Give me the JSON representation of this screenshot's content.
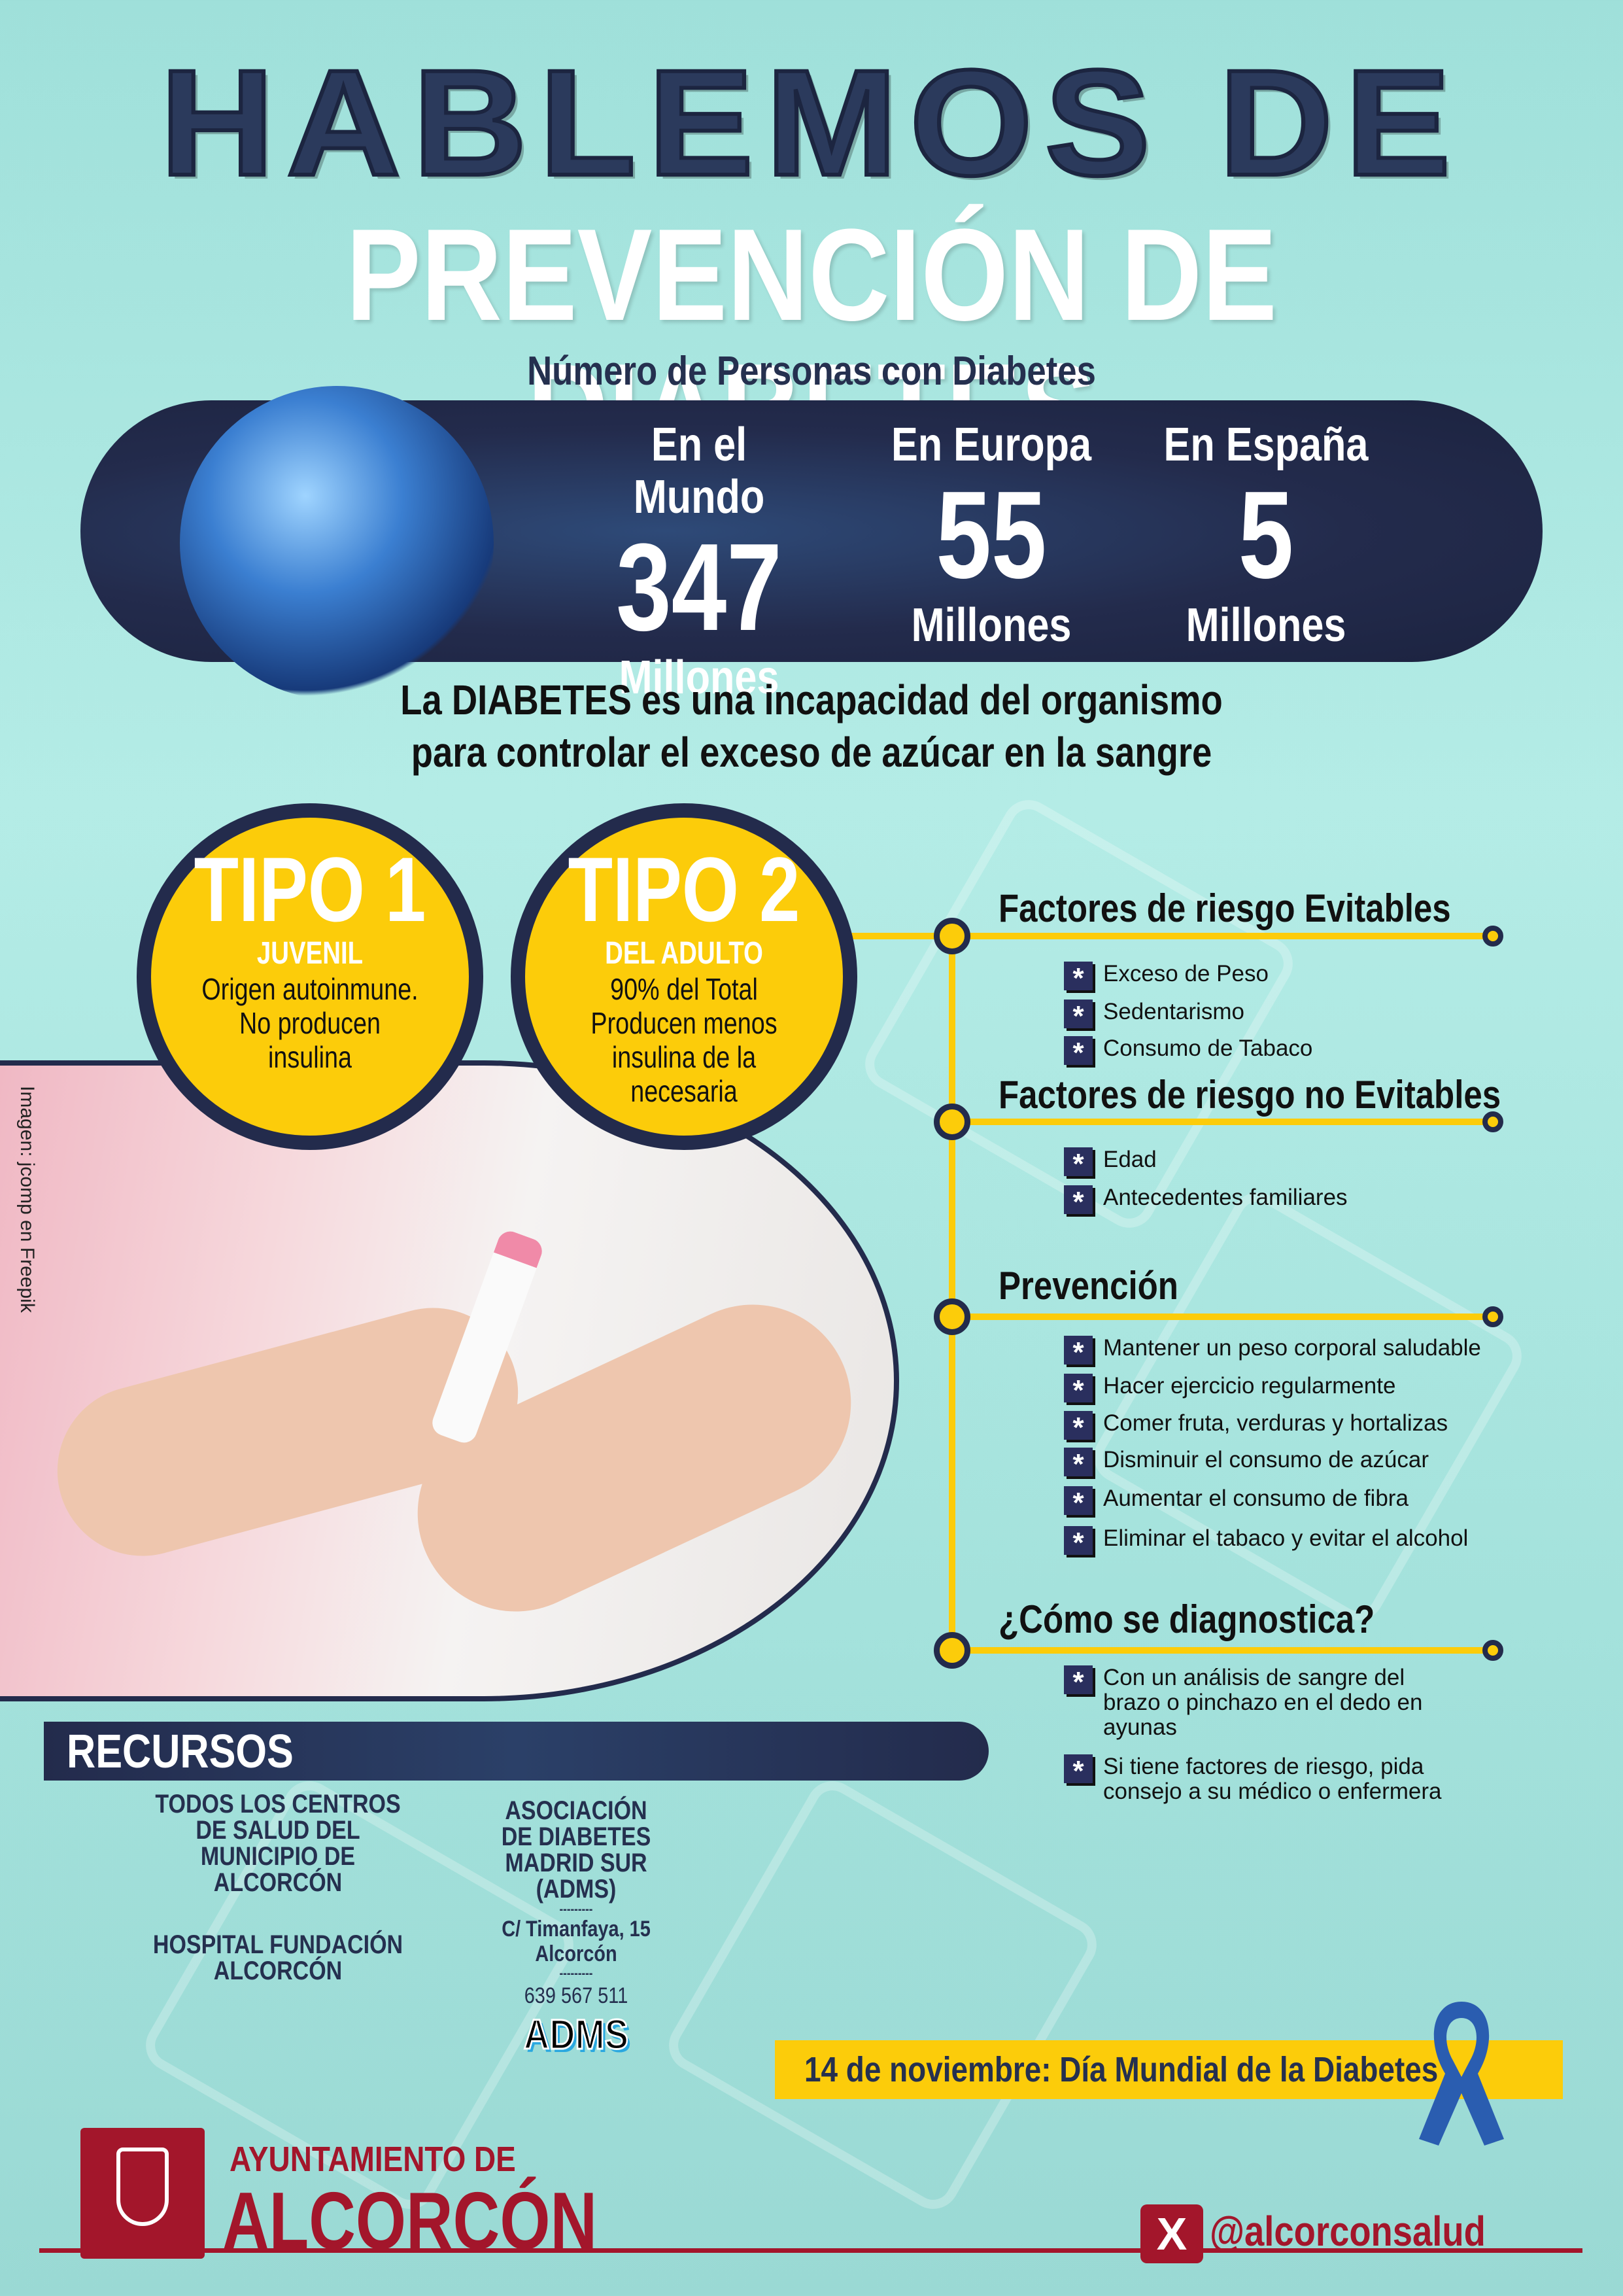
{
  "title": {
    "line1": "HABLEMOS DE",
    "line2": "PREVENCIÓN DE DIABETES",
    "subtitle": "Número de Personas con Diabetes"
  },
  "stats": [
    {
      "label": "En el Mundo",
      "value": "347",
      "unit": "Millones"
    },
    {
      "label": "En Europa",
      "value": "55",
      "unit": "Millones"
    },
    {
      "label": "En España",
      "value": "5",
      "unit": "Millones"
    }
  ],
  "definition": {
    "line1": "La DIABETES es una incapacidad del organismo",
    "line2": "para controlar el exceso de azúcar en la sangre"
  },
  "types": [
    {
      "title": "TIPO 1",
      "subtitle": "JUVENIL",
      "desc": [
        "Origen autoinmune.",
        "No producen",
        "insulina"
      ]
    },
    {
      "title": "TIPO 2",
      "subtitle": "DEL ADULTO",
      "desc": [
        "90% del Total",
        "Producen menos",
        "insulina de la",
        "necesaria"
      ]
    }
  ],
  "photo_credit": "Imagen: jcomp en Freepik",
  "sections": [
    {
      "title": "Factores de riesgo Evitables",
      "items": [
        "Exceso de Peso",
        "Sedentarismo",
        "Consumo de Tabaco"
      ]
    },
    {
      "title": "Factores de riesgo no Evitables",
      "items": [
        "Edad",
        "Antecedentes familiares"
      ]
    },
    {
      "title": "Prevención",
      "items": [
        "Mantener un peso corporal saludable",
        "Hacer ejercicio regularmente",
        "Comer fruta, verduras y hortalizas",
        "Disminuir el consumo de azúcar",
        "Aumentar el consumo de fibra",
        "Eliminar el tabaco y evitar el alcohol"
      ]
    },
    {
      "title": "¿Cómo se diagnostica?",
      "items": [
        "Con un análisis de sangre del brazo o pinchazo en el dedo en ayunas",
        "Si tiene factores de riesgo, pida consejo a su médico o enfermera"
      ]
    }
  ],
  "resources": {
    "title": "RECURSOS",
    "col1": [
      "TODOS LOS CENTROS",
      "DE SALUD DEL",
      "MUNICIPIO DE",
      "ALCORCÓN",
      "",
      "HOSPITAL FUNDACIÓN",
      "ALCORCÓN"
    ],
    "col2": [
      "ASOCIACIÓN",
      "DE DIABETES",
      "MADRID SUR",
      "(ADMS)",
      "---------",
      "C/ Timanfaya, 15",
      "Alcorcón",
      "---------",
      "639 567 511"
    ],
    "logo": "ADMS"
  },
  "banner": "14 de noviembre: Día Mundial de la Diabetes",
  "footer": {
    "org_line1": "AYUNTAMIENTO DE",
    "org_line2": "ALCORCÓN",
    "social_icon": "x-logo",
    "handle": "@alcorconsalud"
  },
  "colors": {
    "navy": "#232b4c",
    "yellow": "#fccc0a",
    "red": "#a3162b",
    "teal": "#a8e3df"
  }
}
